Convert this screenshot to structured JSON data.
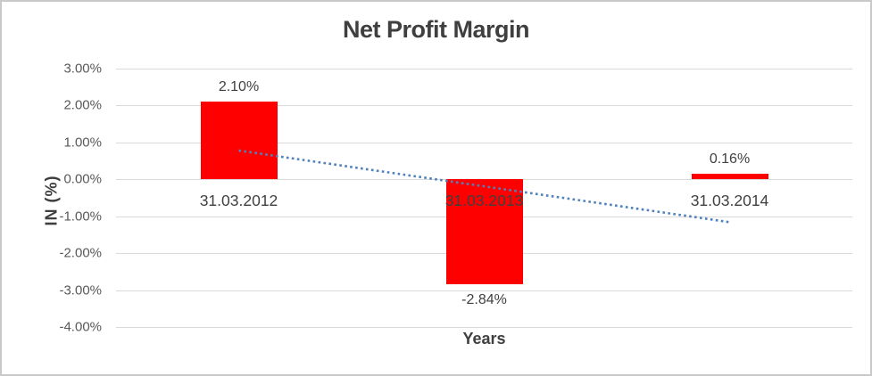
{
  "chart_data": {
    "type": "bar",
    "title": "Net Profit Margin",
    "xlabel": "Years",
    "ylabel": "IN (%)",
    "categories": [
      "31.03.2012",
      "31.03.2013",
      "31.03.2014"
    ],
    "values": [
      2.1,
      -2.84,
      0.16
    ],
    "data_labels": [
      "2.10%",
      "-2.84%",
      "0.16%"
    ],
    "series_name": "Net Profit Margin",
    "bar_color": "#fe0000",
    "ylim": [
      -4,
      3
    ],
    "y_ticks": [
      {
        "label": "3.00%",
        "value": 3
      },
      {
        "label": "2.00%",
        "value": 2
      },
      {
        "label": "1.00%",
        "value": 1
      },
      {
        "label": "0.00%",
        "value": 0
      },
      {
        "label": "-1.00%",
        "value": -1
      },
      {
        "label": "-2.00%",
        "value": -2
      },
      {
        "label": "-3.00%",
        "value": -3
      },
      {
        "label": "-4.00%",
        "value": -4
      }
    ],
    "grid": "horizontal",
    "gridline_color": "#d9d9d9",
    "legend": "none",
    "trendline": {
      "type": "linear",
      "style": "dotted",
      "color": "#4e81bd",
      "start_value": 0.78,
      "end_value": -1.16
    }
  }
}
